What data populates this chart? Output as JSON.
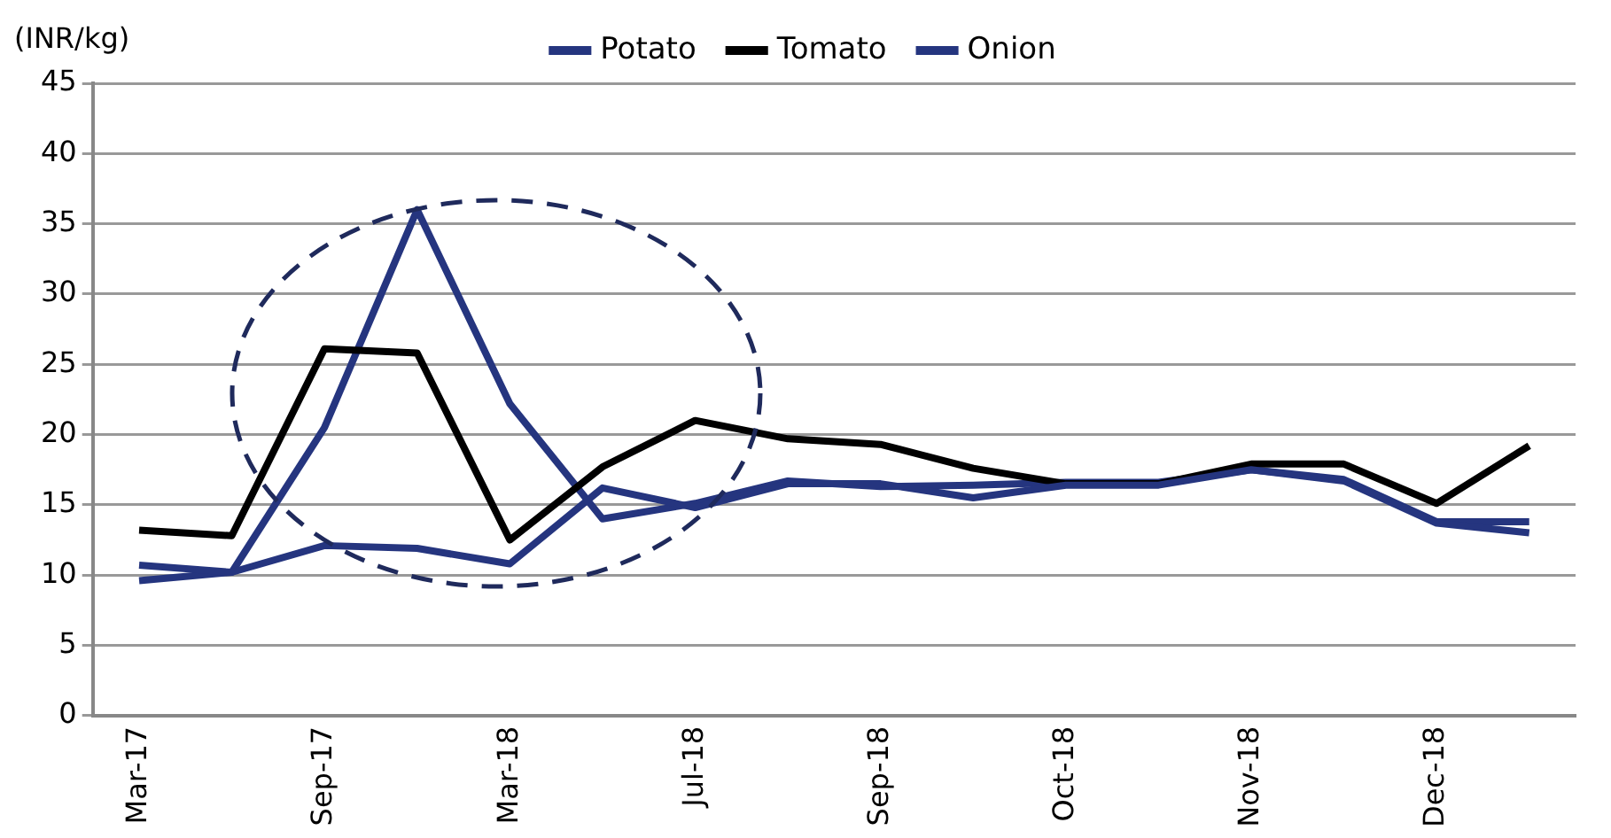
{
  "chart_data": {
    "type": "line",
    "ylabel": "(INR/kg)",
    "categories": [
      "Mar-17",
      null,
      "Sep-17",
      null,
      "Mar-18",
      null,
      "Jul-18",
      null,
      "Sep-18",
      null,
      "Oct-18",
      null,
      "Nov-18",
      null,
      "Dec-18",
      null
    ],
    "series": [
      {
        "name": "Potato",
        "color": "#25357f",
        "values": [
          10.7,
          10.2,
          12.1,
          11.9,
          10.8,
          16.2,
          14.8,
          16.5,
          16.5,
          15.5,
          16.4,
          16.4,
          17.5,
          16.7,
          13.7,
          13.0
        ]
      },
      {
        "name": "Tomato",
        "color": "#000000",
        "values": [
          13.2,
          12.8,
          26.1,
          25.8,
          12.5,
          17.7,
          21.0,
          19.7,
          19.3,
          17.6,
          16.5,
          16.5,
          17.9,
          17.9,
          15.1,
          19.2
        ]
      },
      {
        "name": "Onion",
        "color": "#25357f",
        "values": [
          9.6,
          10.2,
          20.5,
          36.0,
          22.2,
          14.0,
          15.1,
          16.7,
          16.3,
          16.4,
          16.6,
          16.6,
          17.5,
          16.8,
          13.8,
          13.8
        ]
      }
    ],
    "ylim": [
      0,
      45
    ],
    "yticks": [
      0,
      5,
      10,
      15,
      20,
      25,
      30,
      35,
      40,
      45
    ],
    "grid": "y",
    "legend": "top",
    "marker": "none",
    "line_style": "solid"
  }
}
